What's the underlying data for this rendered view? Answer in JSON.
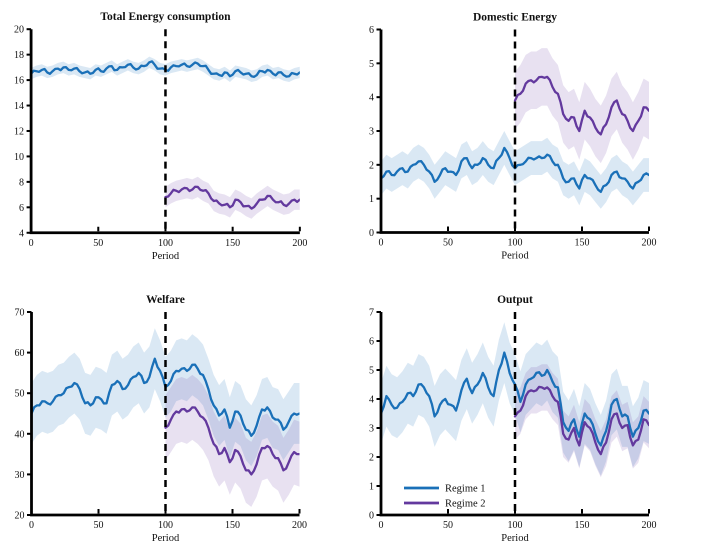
{
  "figure_name": "regime-comparison-simulation-figure",
  "colors": {
    "background": "#ffffff",
    "axis": "#000000",
    "text": "#111111",
    "vline": "#000000",
    "regime1_line": "#1a70b8",
    "regime1_band_opacity": 0.16,
    "regime2_line": "#63399e",
    "regime2_band_opacity": 0.15
  },
  "legend": {
    "entries": [
      {
        "label": "Regime 1",
        "color_key": "regime1"
      },
      {
        "label": "Regime 2",
        "color_key": "regime2"
      }
    ],
    "position": "bottom-left-of-output-panel",
    "frame": false
  },
  "chart_data": [
    {
      "type": "line",
      "title": "Total Energy consumption",
      "xlabel": "Period",
      "xlim": [
        0,
        200
      ],
      "xticks": [
        0,
        50,
        100,
        150,
        200
      ],
      "ylim": [
        4,
        20
      ],
      "yticks": [
        4,
        6,
        8,
        10,
        12,
        14,
        16,
        18,
        20
      ],
      "vline_x": 100,
      "grid": false,
      "show_legend": false,
      "margin_left": 31,
      "top": 29,
      "series": [
        {
          "name": "Regime 1",
          "color_key": "regime1",
          "x_start": 0,
          "x_step": 4,
          "band_halfwidth": 0.45,
          "y": [
            16.5,
            16.7,
            16.8,
            16.6,
            16.7,
            16.9,
            17.0,
            16.8,
            16.9,
            16.7,
            16.6,
            16.5,
            16.8,
            16.7,
            16.9,
            17.1,
            16.8,
            17.0,
            17.2,
            17.0,
            16.9,
            17.1,
            17.4,
            17.2,
            16.9,
            16.8,
            17.0,
            17.1,
            17.2,
            17.1,
            17.2,
            17.3,
            17.1,
            16.8,
            16.5,
            16.4,
            16.6,
            16.3,
            16.7,
            16.6,
            16.5,
            16.3,
            16.4,
            16.7,
            16.8,
            16.5,
            16.6,
            16.4,
            16.3,
            16.5,
            16.6
          ]
        },
        {
          "name": "Regime 2",
          "color_key": "regime2",
          "x_start": 100,
          "x_step": 4,
          "band_halfwidth": 0.8,
          "y": [
            6.8,
            7.1,
            7.3,
            7.4,
            7.5,
            7.4,
            7.6,
            7.3,
            7.1,
            6.5,
            6.3,
            6.2,
            6.0,
            6.6,
            6.4,
            6.1,
            5.9,
            6.3,
            6.6,
            6.9,
            6.6,
            6.4,
            6.2,
            6.3,
            6.6,
            6.6
          ]
        }
      ]
    },
    {
      "type": "line",
      "title": "Domestic Energy",
      "xlabel": "Period",
      "xlim": [
        0,
        200
      ],
      "xticks": [
        0,
        50,
        100,
        150,
        200
      ],
      "ylim": [
        0,
        6
      ],
      "yticks": [
        0,
        1,
        2,
        3,
        4,
        5,
        6
      ],
      "vline_x": 100,
      "grid": false,
      "show_legend": false,
      "margin_left": 25,
      "top": 29,
      "series": [
        {
          "name": "Regime 1",
          "color_key": "regime1",
          "x_start": 0,
          "x_step": 4,
          "band_halfwidth": 0.5,
          "y": [
            1.6,
            1.8,
            1.7,
            1.8,
            1.9,
            1.8,
            2.0,
            2.1,
            2.0,
            1.8,
            1.5,
            1.7,
            1.9,
            1.8,
            1.7,
            2.1,
            2.2,
            1.9,
            2.0,
            2.2,
            2.0,
            1.9,
            2.2,
            2.5,
            2.2,
            1.9,
            2.0,
            2.1,
            2.2,
            2.2,
            2.2,
            2.3,
            2.1,
            2.0,
            1.6,
            1.5,
            1.6,
            1.3,
            1.7,
            1.6,
            1.4,
            1.2,
            1.4,
            1.7,
            1.8,
            1.6,
            1.5,
            1.3,
            1.5,
            1.7,
            1.7
          ]
        },
        {
          "name": "Regime 2",
          "color_key": "regime2",
          "x_start": 100,
          "x_step": 4,
          "band_halfwidth": 0.85,
          "y": [
            3.9,
            4.1,
            4.4,
            4.5,
            4.5,
            4.6,
            4.6,
            4.3,
            4.1,
            3.5,
            3.3,
            3.4,
            3.0,
            3.6,
            3.4,
            3.1,
            2.9,
            3.2,
            3.7,
            3.9,
            3.5,
            3.3,
            3.0,
            3.3,
            3.7,
            3.6
          ]
        }
      ]
    },
    {
      "type": "line",
      "title": "Welfare",
      "xlabel": "Period",
      "xlim": [
        0,
        200
      ],
      "xticks": [
        0,
        50,
        100,
        150,
        200
      ],
      "ylim": [
        20,
        70
      ],
      "yticks": [
        20,
        30,
        40,
        50,
        60,
        70
      ],
      "vline_x": 100,
      "grid": false,
      "show_legend": false,
      "margin_left": 31,
      "top": 37,
      "series": [
        {
          "name": "Regime 1",
          "color_key": "regime1",
          "x_start": 0,
          "x_step": 4,
          "band_halfwidth": 7.5,
          "y": [
            45,
            47,
            48,
            47.5,
            48,
            49.5,
            50,
            51.5,
            52.5,
            51,
            47.5,
            47,
            49,
            48.5,
            47.5,
            52,
            53,
            51,
            52,
            54,
            55,
            52.5,
            54,
            58.5,
            55.5,
            51.5,
            53,
            55.5,
            56,
            55.5,
            57,
            56,
            54.5,
            51,
            47,
            44.5,
            46,
            41.5,
            45.5,
            44.5,
            41,
            39.5,
            42,
            46,
            46.5,
            44,
            43.5,
            41,
            43,
            45,
            45
          ]
        },
        {
          "name": "Regime 2",
          "color_key": "regime2",
          "x_start": 100,
          "x_step": 4,
          "band_halfwidth": 8,
          "y": [
            41.5,
            43.5,
            45.5,
            46,
            45.5,
            46.5,
            45.5,
            44,
            41.5,
            37.5,
            35,
            36.5,
            33,
            36,
            34.5,
            31,
            30,
            32.5,
            36.5,
            37,
            35,
            34,
            31,
            33,
            35.5,
            35
          ]
        }
      ]
    },
    {
      "type": "line",
      "title": "Output",
      "xlabel": "Period",
      "xlim": [
        0,
        200
      ],
      "xticks": [
        0,
        50,
        100,
        150,
        200
      ],
      "ylim": [
        0,
        7
      ],
      "yticks": [
        0,
        1,
        2,
        3,
        4,
        5,
        6,
        7
      ],
      "vline_x": 100,
      "grid": false,
      "show_legend": true,
      "margin_left": 25,
      "top": 37,
      "series": [
        {
          "name": "Regime 1",
          "color_key": "regime1",
          "x_start": 0,
          "x_step": 4,
          "band_halfwidth": 1.05,
          "y": [
            3.5,
            4.1,
            3.8,
            3.7,
            3.9,
            4.2,
            4.1,
            4.5,
            4.4,
            4.1,
            3.4,
            3.8,
            4.0,
            3.8,
            3.6,
            4.3,
            4.7,
            4.2,
            4.5,
            4.9,
            4.4,
            4.1,
            5.0,
            5.6,
            4.9,
            4.5,
            3.9,
            4.5,
            4.7,
            4.9,
            4.8,
            5.0,
            4.6,
            4.4,
            3.2,
            2.9,
            3.3,
            2.7,
            3.5,
            3.3,
            2.8,
            2.4,
            2.9,
            3.8,
            4.0,
            3.4,
            3.4,
            2.7,
            3.0,
            3.6,
            3.5
          ]
        },
        {
          "name": "Regime 2",
          "color_key": "regime2",
          "x_start": 100,
          "x_step": 4,
          "band_halfwidth": 0.8,
          "y": [
            3.4,
            3.6,
            4.1,
            4.3,
            4.3,
            4.4,
            4.4,
            4.1,
            3.9,
            2.8,
            2.6,
            3.0,
            2.4,
            3.2,
            3.0,
            2.5,
            2.1,
            2.5,
            3.3,
            3.5,
            3.0,
            3.1,
            2.4,
            2.6,
            3.3,
            3.1
          ]
        }
      ]
    }
  ]
}
